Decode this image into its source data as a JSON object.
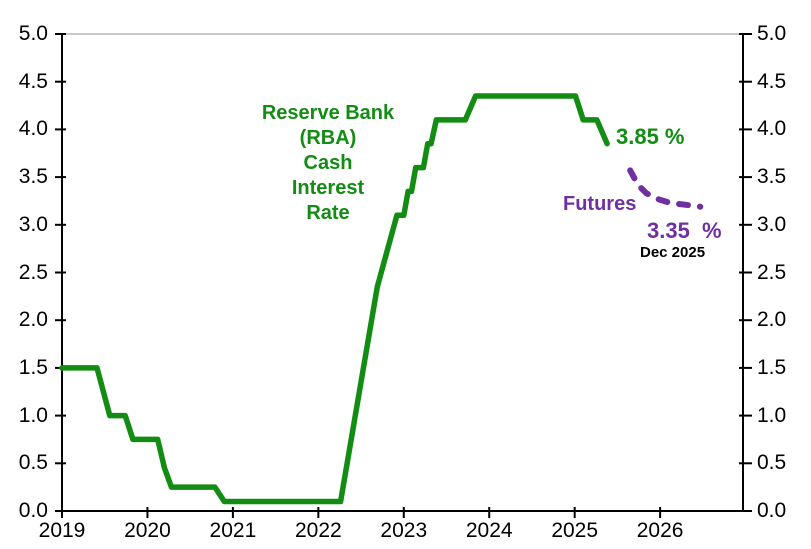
{
  "chart_data": {
    "type": "line",
    "title": "Reserve Bank\n(RBA)\nCash\nInterest\nRate",
    "xlabel": "",
    "ylabel": "",
    "x_axis": {
      "min": 2019,
      "max": 2026.97,
      "ticks": [
        2019,
        2020,
        2021,
        2022,
        2023,
        2024,
        2025,
        2026
      ]
    },
    "y_axis": {
      "min": 0,
      "max": 5,
      "step": 0.5,
      "ticks": [
        0.0,
        0.5,
        1.0,
        1.5,
        2.0,
        2.5,
        3.0,
        3.5,
        4.0,
        4.5,
        5.0
      ],
      "label_sides": "both",
      "decimals": 1
    },
    "grid": false,
    "legend": "none",
    "series": [
      {
        "name": "RBA Cash Interest Rate",
        "style": "solid",
        "color": "#128c12",
        "points": [
          [
            2019.0,
            1.5
          ],
          [
            2019.41,
            1.5
          ],
          [
            2019.56,
            1.0
          ],
          [
            2019.74,
            1.0
          ],
          [
            2019.83,
            0.75
          ],
          [
            2020.12,
            0.75
          ],
          [
            2020.2,
            0.45
          ],
          [
            2020.28,
            0.25
          ],
          [
            2020.79,
            0.25
          ],
          [
            2020.9,
            0.1
          ],
          [
            2022.26,
            0.1
          ],
          [
            2022.69,
            2.35
          ],
          [
            2022.92,
            3.1
          ],
          [
            2023.0,
            3.1
          ],
          [
            2023.05,
            3.35
          ],
          [
            2023.09,
            3.35
          ],
          [
            2023.14,
            3.6
          ],
          [
            2023.23,
            3.6
          ],
          [
            2023.28,
            3.85
          ],
          [
            2023.32,
            3.85
          ],
          [
            2023.38,
            4.1
          ],
          [
            2023.72,
            4.1
          ],
          [
            2023.84,
            4.35
          ],
          [
            2025.01,
            4.35
          ],
          [
            2025.1,
            4.1
          ],
          [
            2025.26,
            4.1
          ],
          [
            2025.38,
            3.85
          ]
        ]
      },
      {
        "name": "Futures",
        "style": "dashed",
        "color": "#7030a0",
        "points": [
          [
            2025.65,
            3.57
          ],
          [
            2025.74,
            3.42
          ],
          [
            2025.84,
            3.33
          ],
          [
            2025.97,
            3.27
          ],
          [
            2026.12,
            3.23
          ],
          [
            2026.3,
            3.21
          ],
          [
            2026.47,
            3.19
          ]
        ]
      }
    ],
    "annotations": {
      "current_rate": "3.85 %",
      "futures_label": "Futures",
      "futures_rate": "3.35  %",
      "futures_date": "Dec 2025"
    },
    "colors": {
      "rate_line": "#128c12",
      "futures_line": "#7030a0",
      "axis": "#000000",
      "top_border": "#a6a6a6",
      "tick_text": "#000000"
    }
  }
}
